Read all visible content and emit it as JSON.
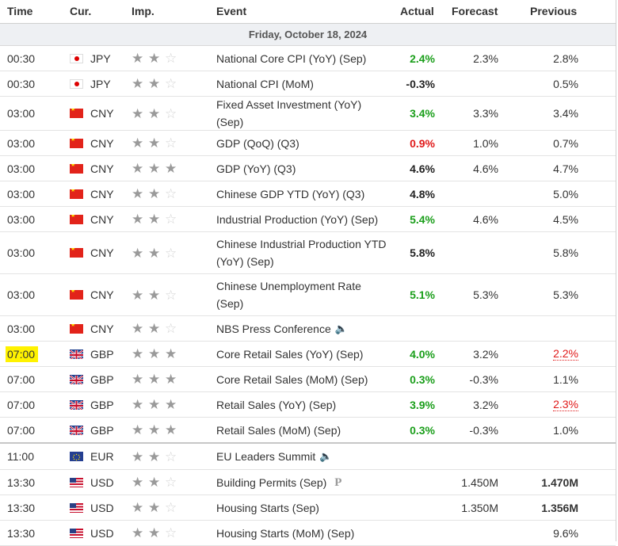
{
  "headers": {
    "time": "Time",
    "cur": "Cur.",
    "imp": "Imp.",
    "event": "Event",
    "actual": "Actual",
    "forecast": "Forecast",
    "previous": "Previous"
  },
  "date": "Friday, October 18, 2024",
  "rows": [
    {
      "time": "00:30",
      "flag": "jp",
      "cur": "JPY",
      "stars": 2,
      "event": "National Core CPI (YoY) (Sep)",
      "actual": "2.4%",
      "actual_tone": "pos",
      "forecast": "2.3%",
      "previous": "2.8%"
    },
    {
      "time": "00:30",
      "flag": "jp",
      "cur": "JPY",
      "stars": 2,
      "event": "National CPI (MoM)",
      "actual": "-0.3%",
      "actual_tone": "neu",
      "forecast": "",
      "previous": "0.5%"
    },
    {
      "time": "03:00",
      "flag": "cn",
      "cur": "CNY",
      "stars": 2,
      "event": "Fixed Asset Investment (YoY) (Sep)",
      "actual": "3.4%",
      "actual_tone": "pos",
      "forecast": "3.3%",
      "previous": "3.4%"
    },
    {
      "time": "03:00",
      "flag": "cn",
      "cur": "CNY",
      "stars": 2,
      "event": "GDP (QoQ) (Q3)",
      "actual": "0.9%",
      "actual_tone": "neg",
      "forecast": "1.0%",
      "previous": "0.7%"
    },
    {
      "time": "03:00",
      "flag": "cn",
      "cur": "CNY",
      "stars": 3,
      "event": "GDP (YoY) (Q3)",
      "actual": "4.6%",
      "actual_tone": "neu",
      "forecast": "4.6%",
      "previous": "4.7%"
    },
    {
      "time": "03:00",
      "flag": "cn",
      "cur": "CNY",
      "stars": 2,
      "event": "Chinese GDP YTD (YoY) (Q3)",
      "actual": "4.8%",
      "actual_tone": "neu",
      "forecast": "",
      "previous": "5.0%"
    },
    {
      "time": "03:00",
      "flag": "cn",
      "cur": "CNY",
      "stars": 2,
      "event": "Industrial Production (YoY) (Sep)",
      "actual": "5.4%",
      "actual_tone": "pos",
      "forecast": "4.6%",
      "previous": "4.5%"
    },
    {
      "time": "03:00",
      "flag": "cn",
      "cur": "CNY",
      "stars": 2,
      "event": "Chinese Industrial Production YTD (YoY) (Sep)",
      "actual": "5.8%",
      "actual_tone": "neu",
      "forecast": "",
      "previous": "5.8%"
    },
    {
      "time": "03:00",
      "flag": "cn",
      "cur": "CNY",
      "stars": 2,
      "event": "Chinese Unemployment Rate (Sep)",
      "actual": "5.1%",
      "actual_tone": "pos",
      "forecast": "5.3%",
      "previous": "5.3%"
    },
    {
      "time": "03:00",
      "flag": "cn",
      "cur": "CNY",
      "stars": 2,
      "event": "NBS Press Conference",
      "actual": "",
      "actual_tone": "neu",
      "forecast": "",
      "previous": "",
      "icon": "speaker-icon"
    },
    {
      "time": "07:00",
      "flag": "gb",
      "cur": "GBP",
      "stars": 3,
      "event": "Core Retail Sales (YoY) (Sep)",
      "actual": "4.0%",
      "actual_tone": "pos",
      "forecast": "3.2%",
      "previous": "2.2%",
      "previous_revised": true,
      "highlight": true
    },
    {
      "time": "07:00",
      "flag": "gb",
      "cur": "GBP",
      "stars": 3,
      "event": "Core Retail Sales (MoM) (Sep)",
      "actual": "0.3%",
      "actual_tone": "pos",
      "forecast": "-0.3%",
      "previous": "1.1%"
    },
    {
      "time": "07:00",
      "flag": "gb",
      "cur": "GBP",
      "stars": 3,
      "event": "Retail Sales (YoY) (Sep)",
      "actual": "3.9%",
      "actual_tone": "pos",
      "forecast": "3.2%",
      "previous": "2.3%",
      "previous_revised": true
    },
    {
      "time": "07:00",
      "flag": "gb",
      "cur": "GBP",
      "stars": 3,
      "event": "Retail Sales (MoM) (Sep)",
      "actual": "0.3%",
      "actual_tone": "pos",
      "forecast": "-0.3%",
      "previous": "1.0%",
      "separator": true
    },
    {
      "time": "11:00",
      "flag": "eu",
      "cur": "EUR",
      "stars": 2,
      "event": "EU Leaders Summit",
      "actual": "",
      "actual_tone": "neu",
      "forecast": "",
      "previous": "",
      "icon": "speaker-icon"
    },
    {
      "time": "13:30",
      "flag": "us",
      "cur": "USD",
      "stars": 2,
      "event": "Building Permits (Sep)",
      "actual": "",
      "actual_tone": "neu",
      "forecast": "1.450M",
      "previous": "1.470M",
      "previous_bold": true,
      "icon": "preliminary-icon"
    },
    {
      "time": "13:30",
      "flag": "us",
      "cur": "USD",
      "stars": 2,
      "event": "Housing Starts (Sep)",
      "actual": "",
      "actual_tone": "neu",
      "forecast": "1.350M",
      "previous": "1.356M",
      "previous_bold": true
    },
    {
      "time": "13:30",
      "flag": "us",
      "cur": "USD",
      "stars": 2,
      "event": "Housing Starts (MoM) (Sep)",
      "actual": "",
      "actual_tone": "neu",
      "forecast": "",
      "previous": "9.6%"
    }
  ],
  "icons": {
    "speaker-icon": "🔈",
    "preliminary-icon": "P",
    "star": "★",
    "star_empty": "☆"
  },
  "colors": {
    "positive": "#1a9e1a",
    "negative": "#e01919",
    "highlight": "#fff200",
    "star_on": "#9a9a9a",
    "star_off": "#d4d4d4"
  }
}
